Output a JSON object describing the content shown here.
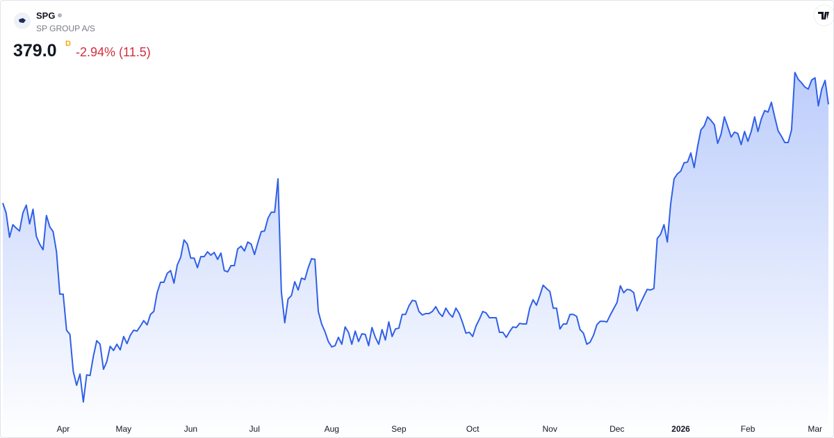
{
  "header": {
    "symbol": "SPG",
    "name": "SP GROUP A/S",
    "price": "379.0",
    "interval": "D",
    "change": "-2.94% (11.5)"
  },
  "chart_data": {
    "type": "area",
    "color": "#2f5fe8",
    "ylim": [
      228.7,
      428.7
    ],
    "xticks": [
      {
        "value": 18,
        "label": "Apr"
      },
      {
        "value": 36,
        "label": "May"
      },
      {
        "value": 56,
        "label": "Jun"
      },
      {
        "value": 75,
        "label": "Jul"
      },
      {
        "value": 98,
        "label": "Aug"
      },
      {
        "value": 118,
        "label": "Sep"
      },
      {
        "value": 140,
        "label": "Oct"
      },
      {
        "value": 163,
        "label": "Nov"
      },
      {
        "value": 183,
        "label": "Dec"
      },
      {
        "value": 202,
        "label": "2026",
        "bold": true
      },
      {
        "value": 222,
        "label": "Feb"
      },
      {
        "value": 242,
        "label": "Mar"
      }
    ],
    "values": [
      331.7,
      327.0,
      315.3,
      321.3,
      319.7,
      318.3,
      327.0,
      330.7,
      321.7,
      328.7,
      315.7,
      312.0,
      309.3,
      325.7,
      320.3,
      318.0,
      308.3,
      288.0,
      288.0,
      270.7,
      268.7,
      251.0,
      244.3,
      249.7,
      236.3,
      249.3,
      249.0,
      258.3,
      265.7,
      264.0,
      252.0,
      255.7,
      263.0,
      261.0,
      264.0,
      261.3,
      267.7,
      264.3,
      268.3,
      270.7,
      270.3,
      272.7,
      275.3,
      273.3,
      278.3,
      279.7,
      288.7,
      293.7,
      293.7,
      298.0,
      299.3,
      293.3,
      302.0,
      305.7,
      314.0,
      312.0,
      305.3,
      305.3,
      300.7,
      306.0,
      306.0,
      308.3,
      306.7,
      308.0,
      304.7,
      307.7,
      299.3,
      298.7,
      301.7,
      301.7,
      309.7,
      311.0,
      308.7,
      313.0,
      312.0,
      307.0,
      312.7,
      318.0,
      318.3,
      324.3,
      327.3,
      327.3,
      343.3,
      289.3,
      274.3,
      285.7,
      287.3,
      294.0,
      290.0,
      295.7,
      295.0,
      300.7,
      305.0,
      304.7,
      279.7,
      273.7,
      270.0,
      265.3,
      262.7,
      263.3,
      267.3,
      264.0,
      272.3,
      269.7,
      264.0,
      270.3,
      265.3,
      269.0,
      268.7,
      263.3,
      272.0,
      267.3,
      264.0,
      271.0,
      266.0,
      274.7,
      267.7,
      271.3,
      271.7,
      278.3,
      278.3,
      282.3,
      285.0,
      284.7,
      279.7,
      278.0,
      278.7,
      278.7,
      279.7,
      282.0,
      279.0,
      277.3,
      281.3,
      278.7,
      277.0,
      281.3,
      278.7,
      274.3,
      269.3,
      269.7,
      267.7,
      272.7,
      276.0,
      279.7,
      279.0,
      276.7,
      276.7,
      276.7,
      269.7,
      269.7,
      267.3,
      270.0,
      272.3,
      272.0,
      274.0,
      273.7,
      273.7,
      281.3,
      285.3,
      282.7,
      287.3,
      292.3,
      290.7,
      289.3,
      281.3,
      281.3,
      271.3,
      273.7,
      273.7,
      278.3,
      278.3,
      277.3,
      271.0,
      269.3,
      264.0,
      265.0,
      268.3,
      273.3,
      275.0,
      275.0,
      274.7,
      278.0,
      281.0,
      284.0,
      292.0,
      288.7,
      290.3,
      290.0,
      288.7,
      280.0,
      283.7,
      287.0,
      290.3,
      290.0,
      290.7,
      314.7,
      316.7,
      321.3,
      313.0,
      331.3,
      343.3,
      345.7,
      347.0,
      351.0,
      351.3,
      355.7,
      348.7,
      358.7,
      366.7,
      368.7,
      373.0,
      371.3,
      369.3,
      360.3,
      364.7,
      373.0,
      368.3,
      363.3,
      365.7,
      365.0,
      359.7,
      366.0,
      361.3,
      366.0,
      373.0,
      366.0,
      372.0,
      376.0,
      375.3,
      380.0,
      373.0,
      366.3,
      363.7,
      360.7,
      360.7,
      366.7,
      394.3,
      391.0,
      389.3,
      387.3,
      386.3,
      390.7,
      391.7,
      378.3,
      386.3,
      390.5,
      379.0
    ]
  }
}
